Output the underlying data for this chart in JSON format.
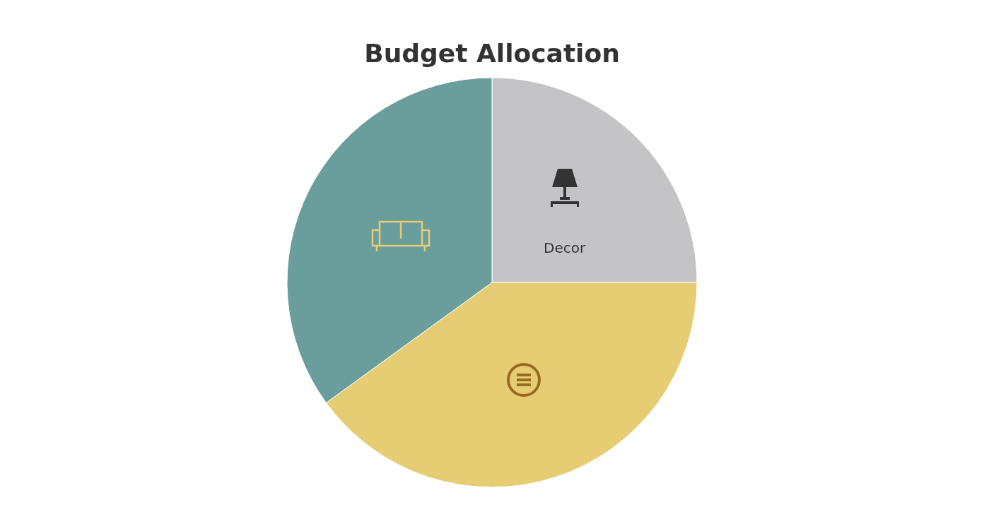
{
  "chart_data": {
    "type": "pie",
    "title": "Budget Allocation",
    "categories": [
      "Decor",
      null,
      null
    ],
    "values": [
      25,
      40,
      35
    ],
    "colors": [
      "#c4c4c6",
      "#e6cd73",
      "#6a9e9c"
    ],
    "legend": false
  }
}
